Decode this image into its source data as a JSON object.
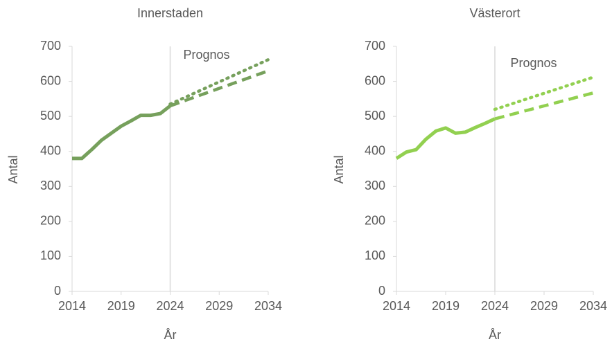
{
  "chart_data": [
    {
      "type": "line",
      "title": "Innerstaden",
      "xlabel": "År",
      "ylabel": "Antal",
      "annotation": "Prognos",
      "vline": 2024,
      "xlim": [
        2014,
        2034
      ],
      "xticks": [
        2014,
        2019,
        2024,
        2029,
        2034
      ],
      "ylim": [
        0,
        700
      ],
      "yticks": [
        0,
        100,
        200,
        300,
        400,
        500,
        600,
        700
      ],
      "series": [
        {
          "color": "#76a05c",
          "style": "solid",
          "x": [
            2014,
            2015,
            2016,
            2017,
            2018,
            2019,
            2020,
            2021,
            2022,
            2023,
            2024
          ],
          "values": [
            380,
            380,
            405,
            432,
            452,
            472,
            487,
            503,
            503,
            508,
            530
          ]
        },
        {
          "color": "#76a05c",
          "style": "dotted",
          "x": [
            2024,
            2034
          ],
          "values": [
            535,
            662
          ]
        },
        {
          "color": "#76a05c",
          "style": "dashed",
          "x": [
            2024,
            2034
          ],
          "values": [
            530,
            630
          ]
        }
      ]
    },
    {
      "type": "line",
      "title": "Västerort",
      "xlabel": "År",
      "ylabel": "Antal",
      "annotation": "Prognos",
      "vline": 2024,
      "xlim": [
        2014,
        2034
      ],
      "xticks": [
        2014,
        2019,
        2024,
        2029,
        2034
      ],
      "ylim": [
        0,
        700
      ],
      "yticks": [
        0,
        100,
        200,
        300,
        400,
        500,
        600,
        700
      ],
      "series": [
        {
          "color": "#92d050",
          "style": "solid",
          "x": [
            2014,
            2015,
            2016,
            2017,
            2018,
            2019,
            2020,
            2021,
            2022,
            2023,
            2024
          ],
          "values": [
            380,
            398,
            405,
            435,
            458,
            467,
            452,
            455,
            468,
            480,
            493
          ]
        },
        {
          "color": "#92d050",
          "style": "dotted",
          "x": [
            2024,
            2034
          ],
          "values": [
            520,
            612
          ]
        },
        {
          "color": "#92d050",
          "style": "dashed",
          "x": [
            2024,
            2034
          ],
          "values": [
            493,
            567
          ]
        }
      ]
    }
  ]
}
